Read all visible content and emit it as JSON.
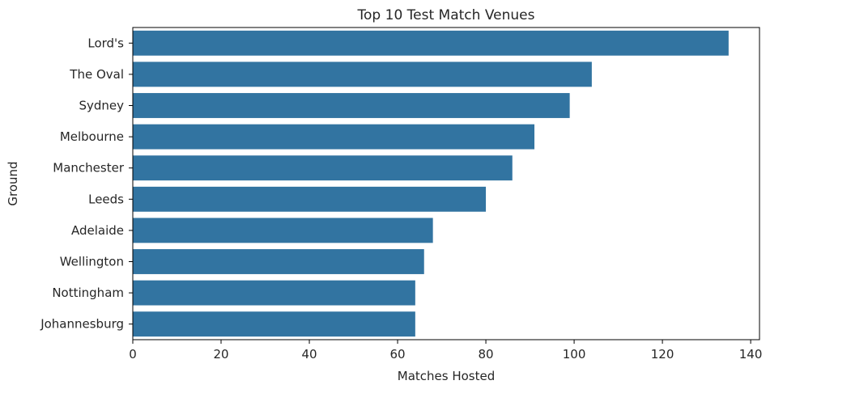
{
  "chart_data": {
    "type": "bar",
    "orientation": "horizontal",
    "title": "Top 10 Test Match Venues",
    "xlabel": "Matches Hosted",
    "ylabel": "Ground",
    "categories": [
      "Lord's",
      "The Oval",
      "Sydney",
      "Melbourne",
      "Manchester",
      "Leeds",
      "Adelaide",
      "Wellington",
      "Nottingham",
      "Johannesburg"
    ],
    "values": [
      135,
      104,
      99,
      91,
      86,
      80,
      68,
      66,
      64,
      64
    ],
    "xlim": [
      0,
      142
    ],
    "xticks": [
      0,
      20,
      40,
      60,
      80,
      100,
      120,
      140
    ],
    "bar_color": "#3274a1",
    "grid": false,
    "legend": "none"
  }
}
